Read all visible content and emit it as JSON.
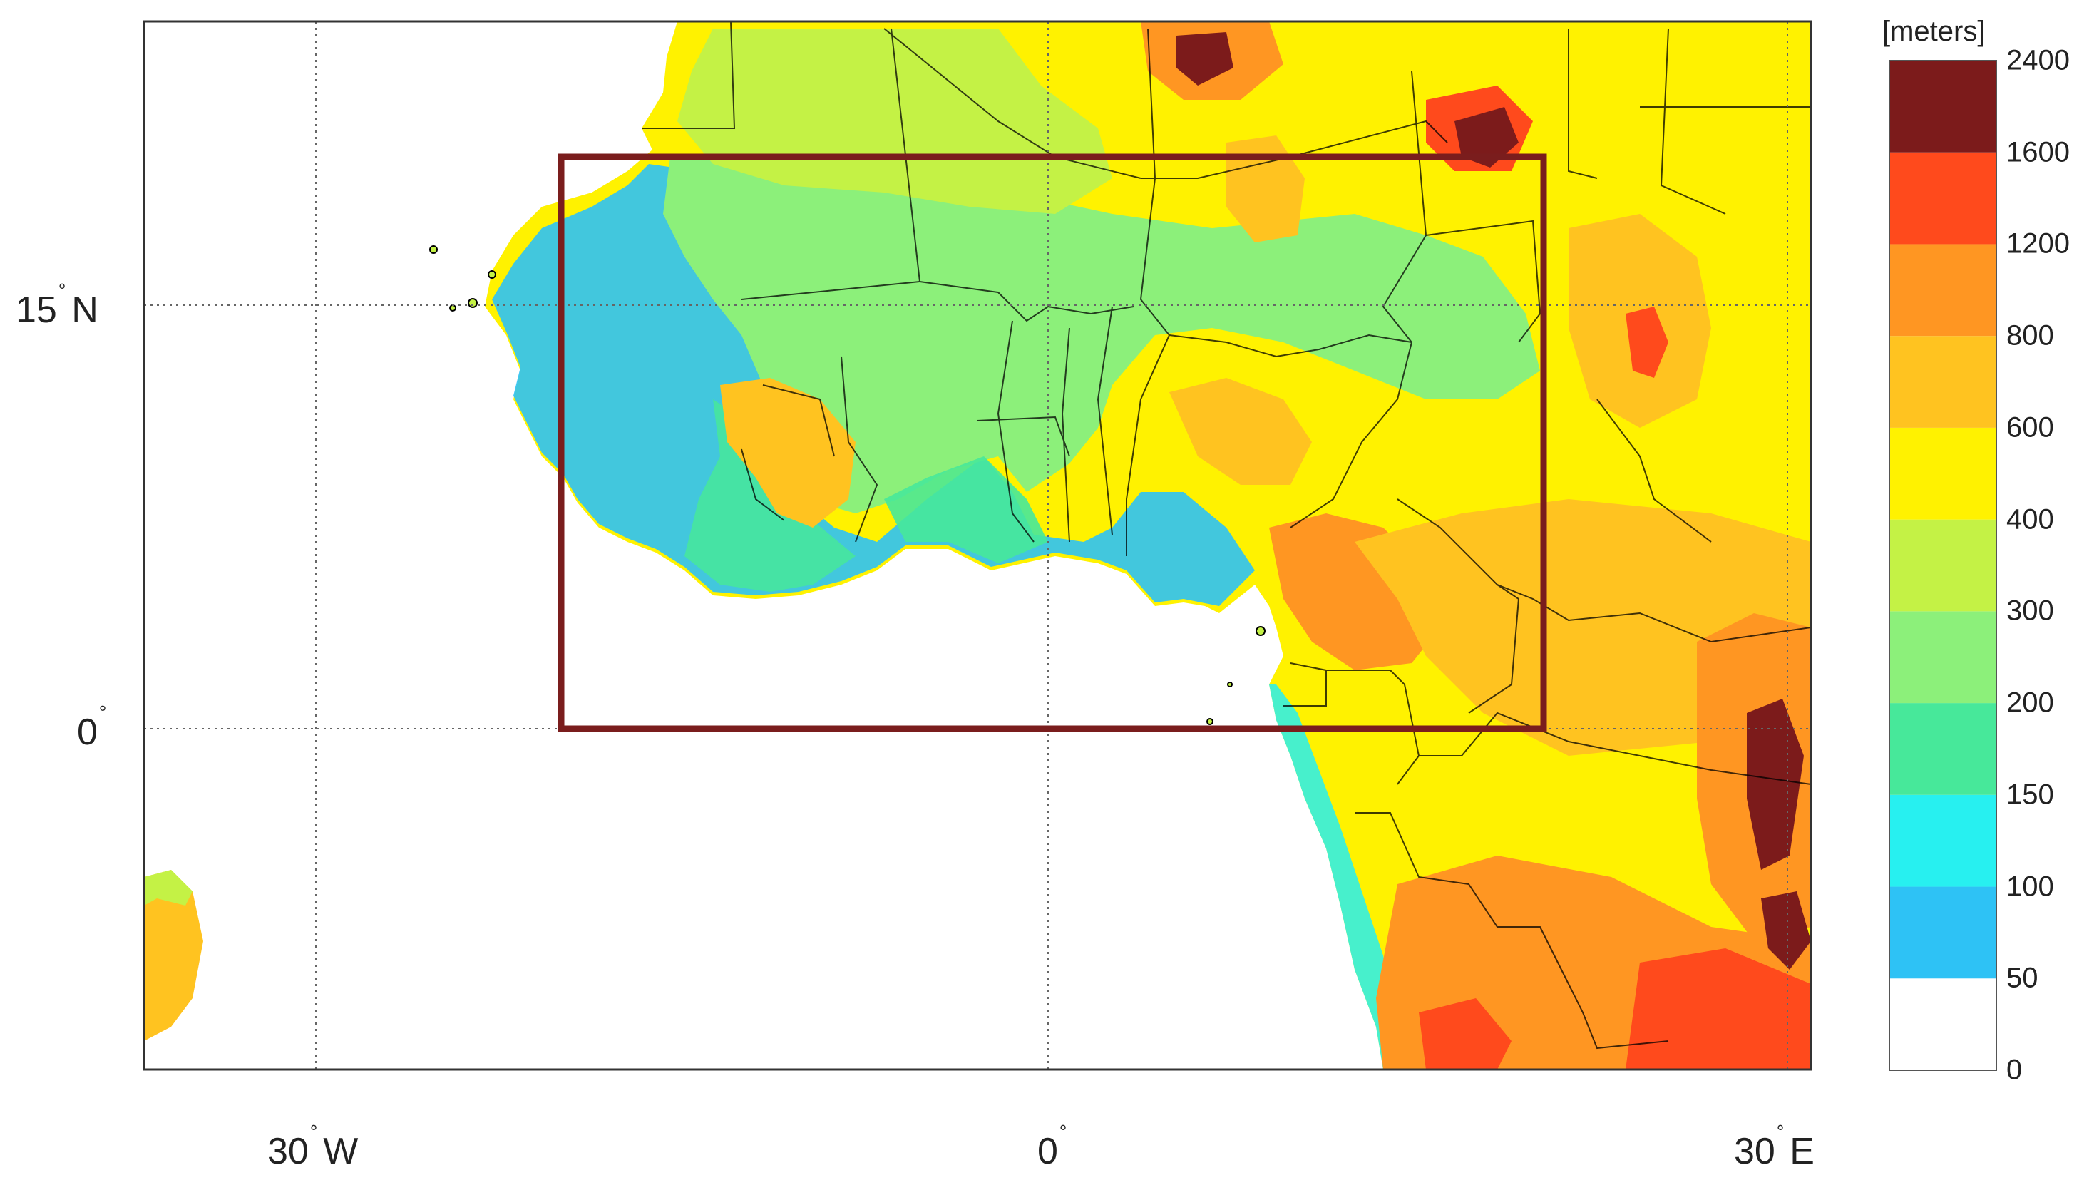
{
  "map": {
    "lon_ticks": [
      {
        "lon": -30,
        "deg": "30",
        "hemi": "W"
      },
      {
        "lon": 0,
        "deg": "0",
        "hemi": ""
      },
      {
        "lon": 30,
        "deg": "30",
        "hemi": "E"
      }
    ],
    "lat_ticks": [
      {
        "lat": 15,
        "deg": "15",
        "hemi": "N"
      },
      {
        "lat": 0,
        "deg": "0",
        "hemi": ""
      }
    ],
    "extent": {
      "lon_min": -37,
      "lon_max": 31,
      "lat_min": -12,
      "lat_max": 25
    },
    "box": {
      "lon_min": -20,
      "lon_max": 20,
      "lat_min": 0,
      "lat_max": 20.5,
      "color": "#7a1d1d"
    },
    "grid": true
  },
  "colorbar": {
    "unit": "[meters]",
    "levels": [
      {
        "label": "0",
        "color": "#ffffff"
      },
      {
        "label": "50",
        "color": "#2ec2f5"
      },
      {
        "label": "100",
        "color": "#27f0f0"
      },
      {
        "label": "150",
        "color": "#47e89a"
      },
      {
        "label": "200",
        "color": "#8cf07a"
      },
      {
        "label": "300",
        "color": "#c4f245"
      },
      {
        "label": "400",
        "color": "#fff200"
      },
      {
        "label": "600",
        "color": "#ffc320"
      },
      {
        "label": "800",
        "color": "#ff9622"
      },
      {
        "label": "1200",
        "color": "#ff4a1c"
      },
      {
        "label": "1600",
        "color": "#7c1b1b"
      },
      {
        "label": "2400",
        "color": ""
      }
    ]
  }
}
